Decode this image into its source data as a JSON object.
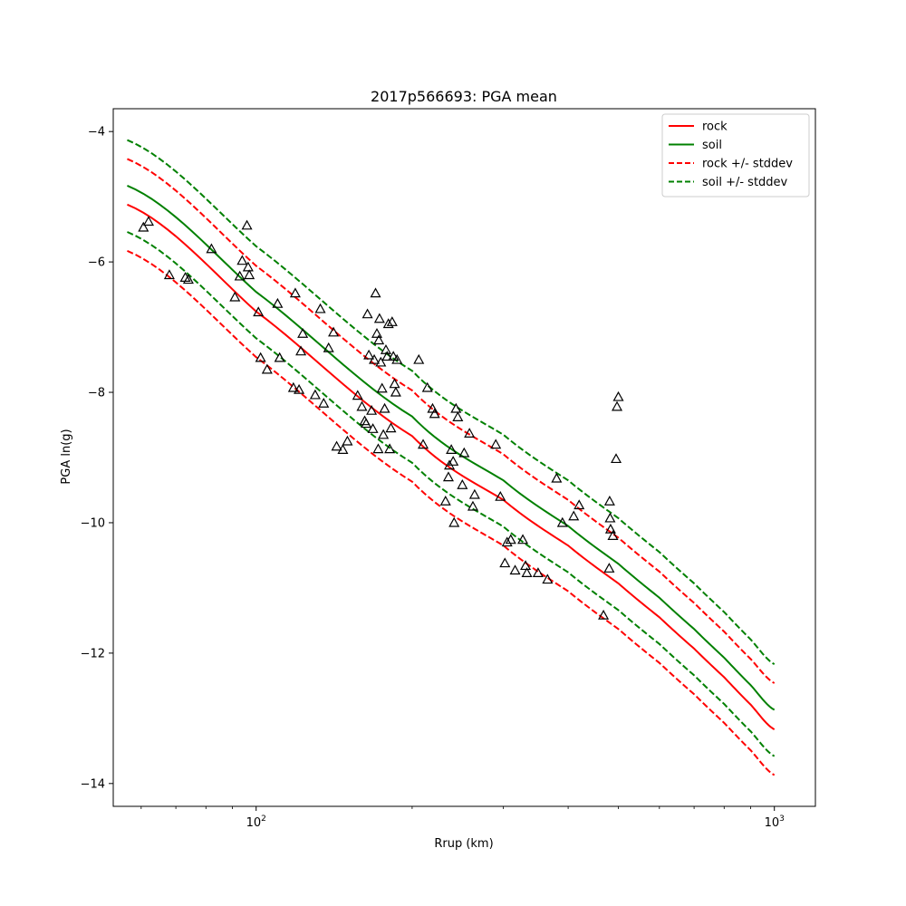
{
  "chart_data": {
    "type": "scatter",
    "title": "2017p566693: PGA mean",
    "xlabel": "Rrup (km)",
    "ylabel": "PGA ln(g)",
    "x_scale": "log",
    "xlim": [
      53,
      1200
    ],
    "ylim": [
      -14.35,
      -3.65
    ],
    "x_ticks": [
      {
        "value": 100,
        "label": "10²"
      },
      {
        "value": 1000,
        "label": "10³"
      }
    ],
    "x_minor_ticks": [
      60,
      70,
      80,
      90,
      200,
      300,
      400,
      500,
      600,
      700,
      800,
      900
    ],
    "y_ticks": [
      -14,
      -12,
      -10,
      -8,
      -6,
      -4
    ],
    "y_tick_labels": [
      "−14",
      "−12",
      "−10",
      "−8",
      "−6",
      "−4"
    ],
    "grid": false,
    "legend_position": "top-right",
    "series": [
      {
        "name": "rock",
        "kind": "line",
        "color": "#ff0000",
        "dash": "solid",
        "x": [
          56.4,
          100,
          200,
          300,
          400,
          500,
          600,
          700,
          800,
          900,
          1000
        ],
        "y": [
          -5.12,
          -6.76,
          -8.67,
          -9.65,
          -10.35,
          -10.93,
          -11.45,
          -11.93,
          -12.37,
          -12.79,
          -13.17
        ]
      },
      {
        "name": "soil",
        "kind": "line",
        "color": "#008000",
        "dash": "solid",
        "x": [
          56.4,
          100,
          200,
          300,
          400,
          500,
          600,
          700,
          800,
          900,
          1000
        ],
        "y": [
          -4.83,
          -6.46,
          -8.37,
          -9.35,
          -10.05,
          -10.63,
          -11.15,
          -11.63,
          -12.07,
          -12.49,
          -12.87
        ]
      },
      {
        "name": "rock +/- stddev",
        "kind": "line",
        "color": "#ff0000",
        "dash": "dashed",
        "x": [
          56.4,
          100,
          200,
          300,
          400,
          500,
          600,
          700,
          800,
          900,
          1000
        ],
        "y": [
          -4.42,
          -6.06,
          -7.97,
          -8.95,
          -9.65,
          -10.23,
          -10.75,
          -11.23,
          -11.67,
          -12.09,
          -12.46
        ]
      },
      {
        "name": "",
        "kind": "line",
        "color": "#ff0000",
        "dash": "dashed",
        "x": [
          56.4,
          100,
          200,
          300,
          400,
          500,
          600,
          700,
          800,
          900,
          1000
        ],
        "y": [
          -5.83,
          -7.46,
          -9.37,
          -10.35,
          -11.05,
          -11.63,
          -12.15,
          -12.63,
          -13.07,
          -13.49,
          -13.87
        ]
      },
      {
        "name": "soil +/- stddev",
        "kind": "line",
        "color": "#008000",
        "dash": "dashed",
        "x": [
          56.4,
          100,
          200,
          300,
          400,
          500,
          600,
          700,
          800,
          900,
          1000
        ],
        "y": [
          -4.13,
          -5.76,
          -7.67,
          -8.65,
          -9.35,
          -9.93,
          -10.45,
          -10.93,
          -11.37,
          -11.79,
          -12.17
        ]
      },
      {
        "name": "",
        "kind": "line",
        "color": "#008000",
        "dash": "dashed",
        "x": [
          56.4,
          100,
          200,
          300,
          400,
          500,
          600,
          700,
          800,
          900,
          1000
        ],
        "y": [
          -5.54,
          -7.17,
          -9.08,
          -10.06,
          -10.76,
          -11.34,
          -11.86,
          -12.34,
          -12.78,
          -13.2,
          -13.58
        ]
      }
    ],
    "observations": {
      "marker": "triangle-open",
      "color": "#000000",
      "x": [
        60.6,
        62,
        68,
        73,
        74,
        82,
        91,
        93,
        94,
        96,
        96.5,
        97,
        101,
        102,
        105,
        110,
        111,
        118,
        119,
        121,
        122,
        123,
        130,
        133,
        135,
        138,
        141,
        143,
        147,
        150,
        157,
        160,
        162,
        163,
        164,
        165,
        167,
        168,
        169,
        170,
        171,
        172,
        172.5,
        173,
        174,
        175,
        176,
        177,
        178,
        179,
        180,
        181,
        182,
        183,
        184,
        185,
        186,
        187,
        206,
        210,
        214,
        219,
        221,
        232,
        235,
        236,
        238,
        240,
        241,
        243,
        245,
        250,
        252,
        258,
        262,
        264,
        290,
        296,
        302,
        305,
        310,
        316,
        327,
        331,
        333,
        350,
        365,
        380,
        390,
        410,
        420,
        468,
        480,
        481,
        482,
        483,
        488,
        495,
        497,
        500
      ],
      "y": [
        -5.47,
        -5.38,
        -6.2,
        -6.24,
        -6.27,
        -5.8,
        -6.54,
        -6.22,
        -5.98,
        -5.44,
        -6.08,
        -6.2,
        -6.77,
        -7.47,
        -7.65,
        -6.64,
        -7.47,
        -7.93,
        -6.48,
        -7.96,
        -7.37,
        -7.1,
        -8.04,
        -6.72,
        -8.17,
        -7.32,
        -7.08,
        -8.83,
        -8.88,
        -8.75,
        -8.05,
        -8.22,
        -8.44,
        -8.48,
        -6.8,
        -7.43,
        -8.28,
        -8.56,
        -7.5,
        -6.48,
        -7.1,
        -8.87,
        -7.2,
        -6.87,
        -7.54,
        -7.94,
        -8.65,
        -8.25,
        -7.35,
        -7.45,
        -6.95,
        -8.87,
        -8.55,
        -6.92,
        -7.45,
        -7.87,
        -8.0,
        -7.5,
        -7.5,
        -8.8,
        -7.93,
        -8.25,
        -8.33,
        -9.67,
        -9.3,
        -9.12,
        -8.88,
        -9.06,
        -10.0,
        -8.25,
        -8.38,
        -9.42,
        -8.93,
        -8.63,
        -9.75,
        -9.57,
        -8.8,
        -9.6,
        -10.62,
        -10.3,
        -10.26,
        -10.73,
        -10.26,
        -10.66,
        -10.77,
        -10.77,
        -10.87,
        -9.32,
        -10.0,
        -9.9,
        -9.73,
        -11.42,
        -10.7,
        -9.67,
        -9.93,
        -10.1,
        -10.2,
        -9.02,
        -8.22,
        -8.07
      ]
    }
  }
}
